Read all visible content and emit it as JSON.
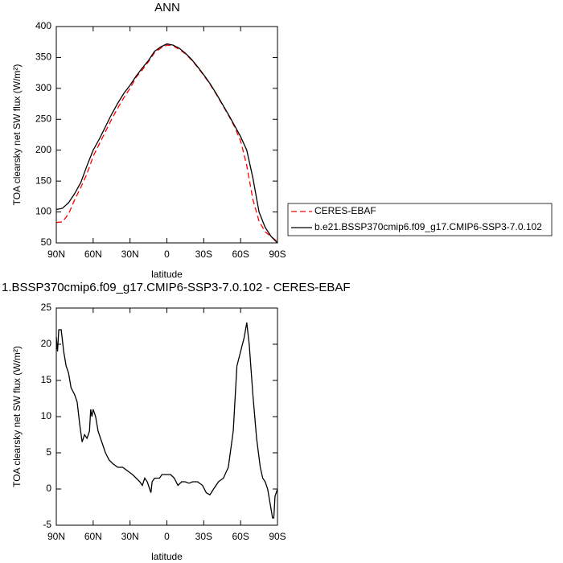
{
  "chart_data": [
    {
      "type": "line",
      "title": "ANN",
      "xlabel": "latitude",
      "ylabel": "TOA clearsky net SW flux (W/m²)",
      "x": [
        90,
        85,
        80,
        75,
        70,
        65,
        60,
        55,
        50,
        45,
        40,
        35,
        30,
        25,
        20,
        15,
        10,
        5,
        0,
        -5,
        -10,
        -15,
        -20,
        -25,
        -30,
        -35,
        -40,
        -45,
        -50,
        -55,
        -60,
        -65,
        -70,
        -75,
        -80,
        -85,
        -90
      ],
      "xlim": [
        90,
        -90
      ],
      "xticks": [
        {
          "value": 90,
          "label": "90N"
        },
        {
          "value": 60,
          "label": "60N"
        },
        {
          "value": 30,
          "label": "30N"
        },
        0,
        {
          "value": -30,
          "label": "30S"
        },
        {
          "value": -60,
          "label": "60S"
        },
        {
          "value": -90,
          "label": "90S"
        }
      ],
      "ylim": [
        50,
        400
      ],
      "yticks": [
        50,
        100,
        150,
        200,
        250,
        300,
        350,
        400
      ],
      "series": [
        {
          "name": "CERES-EBAF",
          "color": "#ff0000",
          "linestyle": "dashed",
          "values": [
            83,
            84,
            97,
            120,
            140,
            162,
            190,
            210,
            230,
            250,
            268,
            285,
            300,
            318,
            330,
            343,
            358,
            365,
            370,
            369,
            363,
            356,
            346,
            334,
            321,
            307,
            291,
            274,
            257,
            238,
            215,
            175,
            120,
            85,
            68,
            60,
            52
          ]
        },
        {
          "name": "b.e21.BSSP370cmip6.f09_g17.CMIP6-SSP3-7.0.102",
          "color": "#000000",
          "linestyle": "solid",
          "values": [
            104,
            106,
            115,
            130,
            148,
            175,
            200,
            218,
            238,
            258,
            276,
            292,
            305,
            320,
            333,
            345,
            360,
            367,
            372,
            370,
            365,
            357,
            347,
            335,
            322,
            308,
            292,
            275,
            258,
            240,
            222,
            200,
            155,
            100,
            75,
            60,
            50
          ]
        }
      ]
    },
    {
      "type": "line",
      "title": "1.BSSP370cmip6.f09_g17.CMIP6-SSP3-7.0.102 - CERES-EBAF",
      "xlabel": "latitude",
      "ylabel": "TOA clearsky net SW flux (W/m²)",
      "x": [
        90,
        89,
        88,
        86,
        84,
        82,
        80,
        78,
        75,
        73,
        71,
        69,
        67,
        65,
        63,
        62,
        61,
        60,
        58,
        56,
        54,
        52,
        50,
        47,
        44,
        40,
        36,
        32,
        28,
        25,
        22,
        20,
        18,
        16,
        14,
        13,
        12,
        10,
        6,
        4,
        0,
        -3,
        -6,
        -9,
        -12,
        -15,
        -18,
        -21,
        -25,
        -29,
        -32,
        -35,
        -38,
        -42,
        -46,
        -50,
        -54,
        -57,
        -60,
        -63,
        -65,
        -67,
        -70,
        -73,
        -76,
        -78,
        -80,
        -82,
        -84,
        -86,
        -87,
        -88,
        -90
      ],
      "xlim": [
        90,
        -90
      ],
      "xticks": [
        {
          "value": 90,
          "label": "90N"
        },
        {
          "value": 60,
          "label": "60N"
        },
        {
          "value": 30,
          "label": "30N"
        },
        0,
        {
          "value": -30,
          "label": "30S"
        },
        {
          "value": -60,
          "label": "60S"
        },
        {
          "value": -90,
          "label": "90S"
        }
      ],
      "ylim": [
        -5,
        25
      ],
      "yticks": [
        -5,
        0,
        5,
        10,
        15,
        20,
        25
      ],
      "color": "#000000",
      "values": [
        21,
        19,
        22,
        22,
        19,
        17,
        16,
        14,
        13,
        12,
        9,
        6.5,
        7.5,
        7,
        8,
        11,
        10,
        11,
        10,
        8,
        7,
        6,
        5,
        4,
        3.5,
        3,
        3,
        2.5,
        2,
        1.5,
        1,
        0.5,
        1.5,
        1,
        0,
        -0.5,
        1,
        1.5,
        1.5,
        2,
        2,
        2,
        1.5,
        0.5,
        1,
        1,
        0.8,
        1,
        1,
        0.5,
        -0.5,
        -0.8,
        0,
        1,
        1.5,
        3,
        8,
        17,
        19,
        21,
        23,
        20,
        13,
        7,
        3,
        1.5,
        1,
        0,
        -2,
        -4,
        -4,
        -1,
        0
      ]
    }
  ]
}
